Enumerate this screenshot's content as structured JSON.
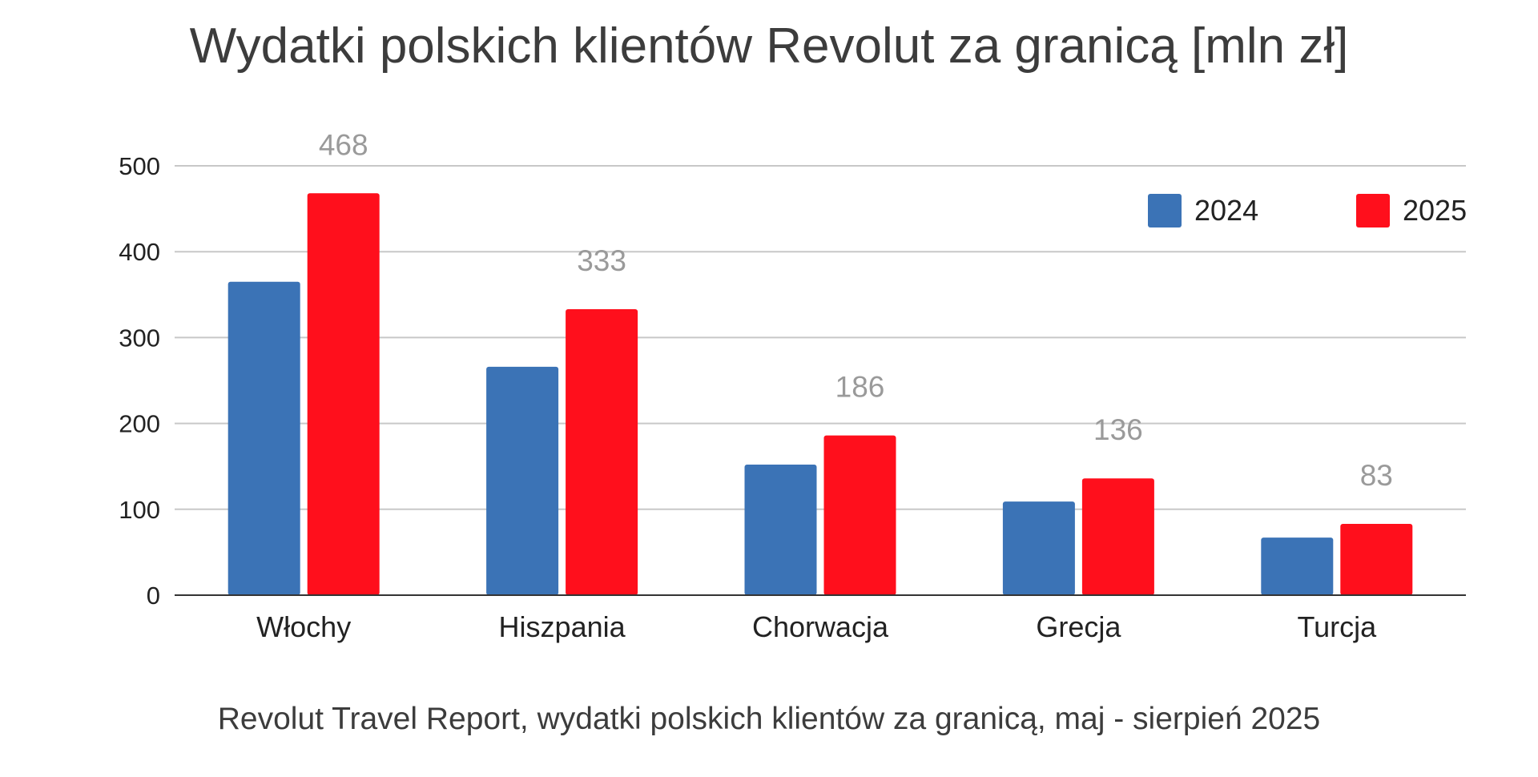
{
  "chart_data": {
    "type": "bar",
    "title": "Wydatki polskich klientów Revolut za granicą [mln zł]",
    "caption": "Revolut Travel Report, wydatki polskich klientów za granicą, maj - sierpień 2025",
    "categories": [
      "Włochy",
      "Hiszpania",
      "Chorwacja",
      "Grecja",
      "Turcja"
    ],
    "series": [
      {
        "name": "2024",
        "color": "#3b73b6",
        "values": [
          365,
          266,
          152,
          109,
          67
        ],
        "labels": [
          "",
          "",
          "",
          "",
          ""
        ]
      },
      {
        "name": "2025",
        "color": "#ff0f1c",
        "values": [
          468,
          333,
          186,
          136,
          83
        ],
        "labels": [
          "468",
          "333",
          "186",
          "136",
          "83"
        ]
      }
    ],
    "ylim": [
      0,
      500
    ],
    "yticks": [
      0,
      100,
      200,
      300,
      400,
      500
    ],
    "xlabel": "",
    "ylabel": "",
    "grid": true,
    "legend_position": "top-right"
  }
}
